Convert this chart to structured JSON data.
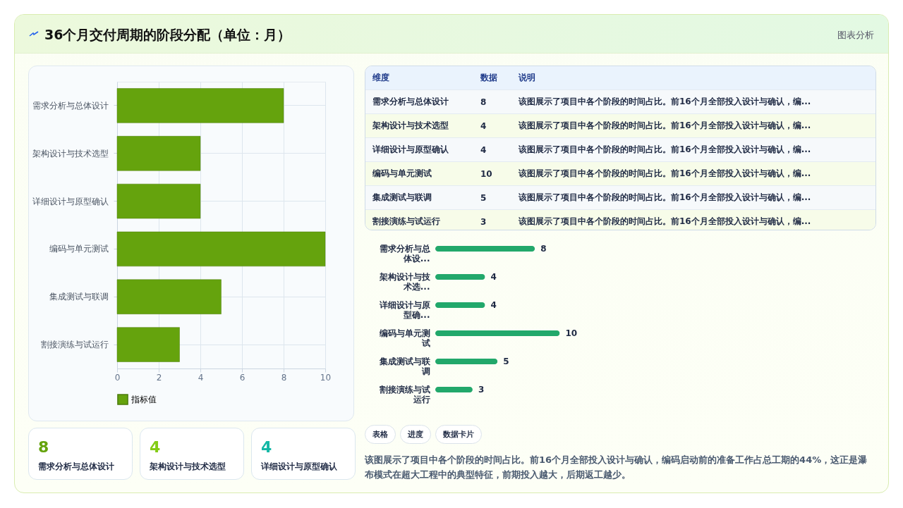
{
  "chart_data": [
    {
      "type": "bar",
      "orientation": "horizontal",
      "title": "36个月交付周期的阶段分配（单位：月）",
      "annotations": [
        "图表分析"
      ],
      "categories": [
        "需求分析与总体设计",
        "架构设计与技术选型",
        "详细设计与原型确认",
        "编码与单元测试",
        "集成测试与联调",
        "割接演练与试运行"
      ],
      "series": [
        {
          "name": "指标值",
          "color": "#65a30d",
          "values": [
            8,
            4,
            4,
            10,
            5,
            3
          ]
        }
      ],
      "xlim": [
        0,
        10
      ],
      "xticks": [
        0,
        2,
        4,
        6,
        8,
        10
      ],
      "grid": true,
      "legend": "bottom"
    },
    {
      "type": "other",
      "annotations": [
        "维度",
        "数据",
        "说明",
        "需求分析与总体设计",
        "8",
        "该图展示了项目中各个阶段的时间占比。前16个月全部投入设计与确认，编...",
        "架构设计与技术选型",
        "4",
        "该图展示了项目中各个阶段的时间占比。前16个月全部投入设计与确认，编...",
        "详细设计与原型确认",
        "4",
        "该图展示了项目中各个阶段的时间占比。前16个月全部投入设计与确认，编...",
        "编码与单元测试",
        "10",
        "该图展示了项目中各个阶段的时间占比。前16个月全部投入设计与确认，编...",
        "集成测试与联调",
        "5",
        "该图展示了项目中各个阶段的时间占比。前16个月全部投入设计与确认，编...",
        "割接演练与试运行",
        "3",
        "该图展示了项目中各个阶段的时间占比。前16个月全部投入设计与确认，编..."
      ]
    },
    {
      "type": "bar",
      "orientation": "horizontal",
      "categories": [
        "需求分析与总体设...",
        "架构设计与技术选...",
        "详细设计与原型确...",
        "编码与单元测试",
        "集成测试与联调",
        "割接演练与试运行"
      ],
      "values": [
        8,
        4,
        4,
        10,
        5,
        3
      ],
      "color": "#22a86b",
      "data_labels": true
    },
    {
      "type": "other",
      "annotations": [
        "8",
        "需求分析与总体设计",
        "4",
        "架构设计与技术选型",
        "4",
        "详细设计与原型确认"
      ]
    },
    {
      "type": "other",
      "annotations": [
        "表格",
        "进度",
        "数据卡片",
        "该图展示了项目中各个阶段的时间占比。前16个月全部投入设计与确认，编码启动前的准备工作占总工期的44%，这正是瀑布模式在超大工程中的典型特征，前期投入越大，后期返工越少。"
      ]
    }
  ]
}
